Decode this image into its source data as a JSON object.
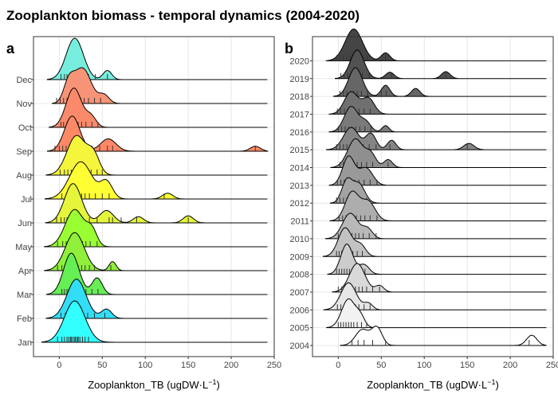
{
  "title": "Zooplankton biomass - temporal dynamics (2004-2020)",
  "chart_data": [
    {
      "type": "ridgeline",
      "panel": "a",
      "xlabel": "Zooplankton_TB (ugDW·L",
      "xlabel_sup": "−1",
      "xlabel_end": ")",
      "xlim": [
        -30,
        250
      ],
      "xticks": [
        0,
        50,
        100,
        150,
        200,
        250
      ],
      "grid": true,
      "categories": [
        {
          "label": "Jan",
          "color": "#33ffff",
          "peaks": [
            [
              18,
              12,
              1.0
            ]
          ],
          "rug": [
            -2,
            3,
            6,
            9,
            11,
            13,
            14,
            16,
            18,
            19,
            21,
            22,
            24,
            27,
            30,
            34
          ]
        },
        {
          "label": "Feb",
          "color": "#33ddf5",
          "peaks": [
            [
              20,
              11,
              0.95
            ],
            [
              55,
              6,
              0.22
            ]
          ],
          "rug": [
            2,
            7,
            10,
            13,
            16,
            18,
            21,
            24,
            28,
            33,
            41,
            53
          ]
        },
        {
          "label": "Mar",
          "color": "#66ee55",
          "peaks": [
            [
              14,
              9,
              1.0
            ],
            [
              44,
              6,
              0.4
            ]
          ],
          "rug": [
            3,
            6,
            9,
            11,
            13,
            15,
            17,
            19,
            22,
            26,
            31,
            38,
            45
          ]
        },
        {
          "label": "Apr",
          "color": "#8fef3a",
          "peaks": [
            [
              18,
              11,
              0.92
            ],
            [
              62,
              4,
              0.22
            ]
          ],
          "rug": [
            -2,
            3,
            7,
            10,
            13,
            16,
            19,
            22,
            26,
            30,
            35,
            41,
            60
          ]
        },
        {
          "label": "May",
          "color": "#99ff33",
          "peaks": [
            [
              18,
              11,
              0.9
            ],
            [
              38,
              6,
              0.35
            ]
          ],
          "rug": [
            -2,
            4,
            8,
            11,
            14,
            17,
            20,
            23,
            27,
            31,
            36,
            44
          ]
        },
        {
          "label": "Jun",
          "color": "#e5f53c",
          "peaks": [
            [
              16,
              10,
              0.95
            ],
            [
              55,
              8,
              0.3
            ],
            [
              92,
              6,
              0.15
            ],
            [
              150,
              6,
              0.17
            ]
          ],
          "rug": [
            -3,
            2,
            6,
            9,
            12,
            15,
            18,
            22,
            27,
            35,
            44,
            58,
            62,
            72,
            90,
            150
          ]
        },
        {
          "label": "Jul",
          "color": "#ffff33",
          "peaks": [
            [
              25,
              13,
              0.9
            ],
            [
              55,
              7,
              0.4
            ],
            [
              126,
              6,
              0.14
            ]
          ],
          "rug": [
            3,
            9,
            14,
            18,
            22,
            26,
            30,
            35,
            42,
            50,
            58,
            122
          ]
        },
        {
          "label": "Aug",
          "color": "#f5f53c",
          "peaks": [
            [
              20,
              11,
              0.95
            ],
            [
              40,
              7,
              0.45
            ]
          ],
          "rug": [
            1,
            6,
            10,
            14,
            18,
            22,
            26,
            31,
            37,
            44,
            50
          ]
        },
        {
          "label": "Sep",
          "color": "#ff8866",
          "peaks": [
            [
              15,
              9,
              0.85
            ],
            [
              57,
              9,
              0.3
            ],
            [
              228,
              6,
              0.12
            ]
          ],
          "rug": [
            -5,
            0,
            4,
            8,
            12,
            16,
            20,
            25,
            31,
            38,
            47,
            56,
            62,
            228
          ]
        },
        {
          "label": "Oct",
          "color": "#fa8a6a",
          "peaks": [
            [
              17,
              9,
              0.95
            ],
            [
              37,
              6,
              0.25
            ]
          ],
          "rug": [
            2,
            5,
            9,
            12,
            15,
            18,
            22,
            26,
            31,
            38,
            45
          ]
        },
        {
          "label": "Nov",
          "color": "#f79478",
          "peaks": [
            [
              11,
              6,
              0.45
            ],
            [
              27,
              10,
              0.85
            ],
            [
              52,
              6,
              0.2
            ]
          ],
          "rug": [
            -3,
            1,
            5,
            9,
            13,
            17,
            21,
            25,
            29,
            34,
            41,
            48
          ]
        },
        {
          "label": "Dec",
          "color": "#77eedd",
          "peaks": [
            [
              18,
              10,
              1.0
            ],
            [
              56,
              5,
              0.22
            ]
          ],
          "rug": [
            2,
            6,
            9,
            12,
            15,
            18,
            21,
            24,
            28,
            34,
            42,
            56
          ]
        }
      ]
    },
    {
      "type": "ridgeline",
      "panel": "b",
      "xlabel": "Zooplankton_TB (ugDW·L",
      "xlabel_sup": "−1",
      "xlabel_end": ")",
      "xlim": [
        -30,
        250
      ],
      "xticks": [
        0,
        50,
        100,
        150,
        200,
        250
      ],
      "grid": true,
      "categories": [
        {
          "label": "2004",
          "color": "#ffffff",
          "peaks": [
            [
              28,
              8,
              0.5
            ],
            [
              45,
              6,
              0.55
            ],
            [
              225,
              6,
              0.32
            ]
          ],
          "rug": [
            16,
            23,
            30,
            40,
            55,
            222
          ]
        },
        {
          "label": "2005",
          "color": "#f2f2f2",
          "peaks": [
            [
              12,
              8,
              0.9
            ],
            [
              26,
              5,
              0.3
            ]
          ],
          "rug": [
            0,
            3,
            6,
            9,
            12,
            15,
            18,
            22,
            27,
            33
          ]
        },
        {
          "label": "2006",
          "color": "#e6e6e6",
          "peaks": [
            [
              12,
              9,
              0.85
            ],
            [
              35,
              5,
              0.2
            ]
          ],
          "rug": [
            -1,
            3,
            7,
            10,
            13,
            16,
            20,
            24,
            30,
            37
          ]
        },
        {
          "label": "2007",
          "color": "#d9d9d9",
          "peaks": [
            [
              22,
              9,
              0.9
            ],
            [
              48,
              5,
              0.2
            ]
          ],
          "rug": [
            0,
            4,
            8,
            12,
            16,
            20,
            24,
            28,
            33,
            40,
            48
          ]
        },
        {
          "label": "2008",
          "color": "#cccccc",
          "peaks": [
            [
              10,
              7,
              0.95
            ],
            [
              30,
              6,
              0.3
            ]
          ],
          "rug": [
            -2,
            1,
            4,
            7,
            10,
            13,
            16,
            20,
            25,
            31
          ]
        },
        {
          "label": "2009",
          "color": "#c2c2c2",
          "peaks": [
            [
              8,
              8,
              0.9
            ],
            [
              26,
              6,
              0.35
            ]
          ],
          "rug": [
            -2,
            1,
            4,
            7,
            10,
            13,
            17,
            22,
            28
          ]
        },
        {
          "label": "2010",
          "color": "#b8b8b8",
          "peaks": [
            [
              14,
              9,
              0.8
            ],
            [
              34,
              6,
              0.3
            ]
          ],
          "rug": [
            0,
            4,
            8,
            12,
            16,
            20,
            24,
            29,
            36,
            44
          ]
        },
        {
          "label": "2011",
          "color": "#adadad",
          "peaks": [
            [
              16,
              8,
              0.9
            ],
            [
              35,
              8,
              0.6
            ]
          ],
          "rug": [
            1,
            5,
            9,
            13,
            17,
            21,
            26,
            31,
            37,
            45
          ]
        },
        {
          "label": "2012",
          "color": "#a3a3a3",
          "peaks": [
            [
              10,
              6,
              0.7
            ],
            [
              24,
              7,
              0.6
            ]
          ],
          "rug": [
            -2,
            2,
            6,
            10,
            14,
            18,
            22,
            27,
            33
          ]
        },
        {
          "label": "2013",
          "color": "#999999",
          "peaks": [
            [
              12,
              7,
              0.9
            ],
            [
              32,
              8,
              0.55
            ]
          ],
          "rug": [
            -1,
            3,
            7,
            11,
            15,
            19,
            24,
            30,
            37,
            45
          ]
        },
        {
          "label": "2014",
          "color": "#8f8f8f",
          "peaks": [
            [
              20,
              9,
              0.9
            ],
            [
              38,
              6,
              0.4
            ],
            [
              58,
              5,
              0.25
            ]
          ],
          "rug": [
            2,
            6,
            10,
            14,
            18,
            22,
            27,
            33,
            40,
            58
          ]
        },
        {
          "label": "2015",
          "color": "#858585",
          "peaks": [
            [
              15,
              9,
              0.7
            ],
            [
              38,
              6,
              0.5
            ],
            [
              62,
              5,
              0.3
            ],
            [
              152,
              6,
              0.2
            ]
          ],
          "rug": [
            -2,
            2,
            6,
            10,
            14,
            18,
            23,
            29,
            36,
            44,
            60,
            150
          ]
        },
        {
          "label": "2016",
          "color": "#7a7a7a",
          "peaks": [
            [
              15,
              8,
              0.8
            ],
            [
              32,
              6,
              0.3
            ],
            [
              55,
              4,
              0.2
            ]
          ],
          "rug": [
            0,
            4,
            8,
            12,
            16,
            20,
            25,
            31,
            38
          ]
        },
        {
          "label": "2017",
          "color": "#707070",
          "peaks": [
            [
              15,
              8,
              0.7
            ],
            [
              35,
              7,
              0.5
            ]
          ],
          "rug": [
            -1,
            3,
            7,
            11,
            15,
            19,
            24,
            30,
            37
          ]
        },
        {
          "label": "2018",
          "color": "#666666",
          "peaks": [
            [
              20,
              8,
              0.9
            ],
            [
              55,
              5,
              0.35
            ],
            [
              90,
              5,
              0.25
            ]
          ],
          "rug": [
            2,
            6,
            10,
            14,
            18,
            22,
            27,
            34,
            50,
            56
          ]
        },
        {
          "label": "2019",
          "color": "#525252",
          "peaks": [
            [
              22,
              8,
              0.9
            ],
            [
              60,
              5,
              0.2
            ],
            [
              125,
              5,
              0.22
            ]
          ],
          "rug": [
            3,
            7,
            11,
            15,
            19,
            23,
            28,
            36,
            62,
            125
          ]
        },
        {
          "label": "2020",
          "color": "#454545",
          "peaks": [
            [
              18,
              10,
              1.0
            ],
            [
              55,
              5,
              0.25
            ]
          ],
          "rug": [
            -2,
            2,
            6,
            10,
            14,
            18,
            22,
            27,
            34,
            55
          ]
        }
      ]
    }
  ]
}
